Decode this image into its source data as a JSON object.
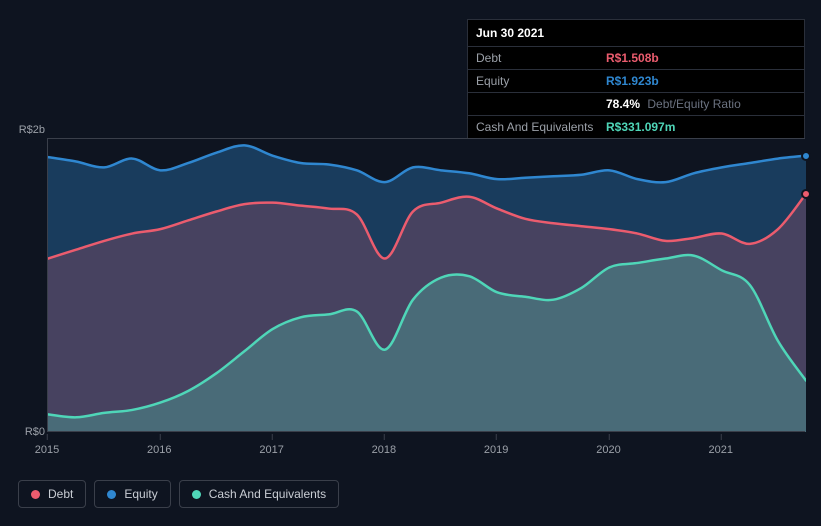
{
  "tooltip": {
    "date": "Jun 30 2021",
    "rows": [
      {
        "label": "Debt",
        "value": "R$1.508b",
        "color": "#eb5c6e"
      },
      {
        "label": "Equity",
        "value": "R$1.923b",
        "color": "#2f87d0"
      },
      {
        "label": "",
        "value": "78.4%",
        "suffix": "Debt/Equity Ratio",
        "color": "#ffffff"
      },
      {
        "label": "Cash And Equivalents",
        "value": "R$331.097m",
        "color": "#4fd6b8"
      }
    ]
  },
  "chart": {
    "type": "area",
    "background_color": "#0e1420",
    "grid_color": "#3a3f4a",
    "ymin": 0,
    "ymax": 2000,
    "y_ticks": [
      {
        "v": 0,
        "label": "R$0"
      },
      {
        "v": 2000,
        "label": "R$2b"
      }
    ],
    "x_labels": [
      "2015",
      "2016",
      "2017",
      "2018",
      "2019",
      "2020",
      "2021"
    ],
    "x_count": 28,
    "series": [
      {
        "name": "Equity",
        "line_color": "#2f87d0",
        "fill_color": "rgba(47,135,208,0.35)",
        "line_width": 2.5,
        "data": [
          1870,
          1840,
          1800,
          1860,
          1780,
          1830,
          1900,
          1950,
          1880,
          1830,
          1820,
          1780,
          1700,
          1800,
          1780,
          1760,
          1720,
          1730,
          1740,
          1750,
          1780,
          1720,
          1700,
          1760,
          1800,
          1830,
          1860,
          1880
        ]
      },
      {
        "name": "Debt",
        "line_color": "#eb5c6e",
        "fill_color": "rgba(235,92,110,0.22)",
        "line_width": 2.5,
        "data": [
          1180,
          1240,
          1300,
          1350,
          1380,
          1440,
          1500,
          1550,
          1560,
          1540,
          1520,
          1480,
          1180,
          1500,
          1560,
          1600,
          1520,
          1450,
          1420,
          1400,
          1380,
          1350,
          1300,
          1320,
          1350,
          1280,
          1380,
          1620
        ]
      },
      {
        "name": "Cash And Equivalents",
        "line_color": "#4fd6b8",
        "fill_color": "rgba(79,214,184,0.28)",
        "line_width": 2.5,
        "data": [
          120,
          100,
          130,
          150,
          200,
          280,
          400,
          550,
          700,
          780,
          800,
          820,
          560,
          900,
          1050,
          1060,
          950,
          920,
          900,
          980,
          1120,
          1150,
          1180,
          1200,
          1100,
          1000,
          620,
          350
        ]
      }
    ],
    "legend": [
      {
        "label": "Debt",
        "color": "#eb5c6e"
      },
      {
        "label": "Equity",
        "color": "#2f87d0"
      },
      {
        "label": "Cash And Equivalents",
        "color": "#4fd6b8"
      }
    ]
  }
}
